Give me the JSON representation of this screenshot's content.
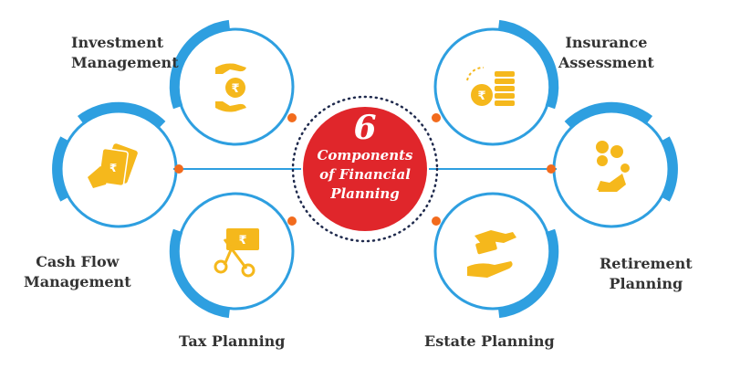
{
  "title": {
    "number": "6",
    "lines": [
      "Components",
      "of Financial",
      "Planning"
    ]
  },
  "components": [
    {
      "id": "investment-management",
      "label_lines": [
        "Investment",
        "Management"
      ],
      "icon": "rupee-coin-in-hands-icon"
    },
    {
      "id": "insurance-assessment",
      "label_lines": [
        "Insurance",
        "Assessment"
      ],
      "icon": "rupee-coin-stacks-icon"
    },
    {
      "id": "cash-flow-management",
      "label_lines": [
        "Cash Flow",
        "Management"
      ],
      "icon": "hand-holding-banknotes-icon"
    },
    {
      "id": "retirement-planning",
      "label_lines": [
        "Retirement",
        "Planning"
      ],
      "icon": "person-relaxing-icon"
    },
    {
      "id": "tax-planning",
      "label_lines": [
        "Tax Planning"
      ],
      "icon": "scissors-cutting-banknote-icon"
    },
    {
      "id": "estate-planning",
      "label_lines": [
        "Estate Planning"
      ],
      "icon": "hand-over-hand-money-icon"
    }
  ],
  "colors": {
    "ring": "#2e9fe0",
    "connector": "#2e9fe0",
    "dot": "#f26b1d",
    "center_fill": "#e0262b",
    "center_border": "#1f2a4d",
    "icon": "#f5b81c",
    "label": "#333333",
    "center_text": "#ffffff"
  }
}
